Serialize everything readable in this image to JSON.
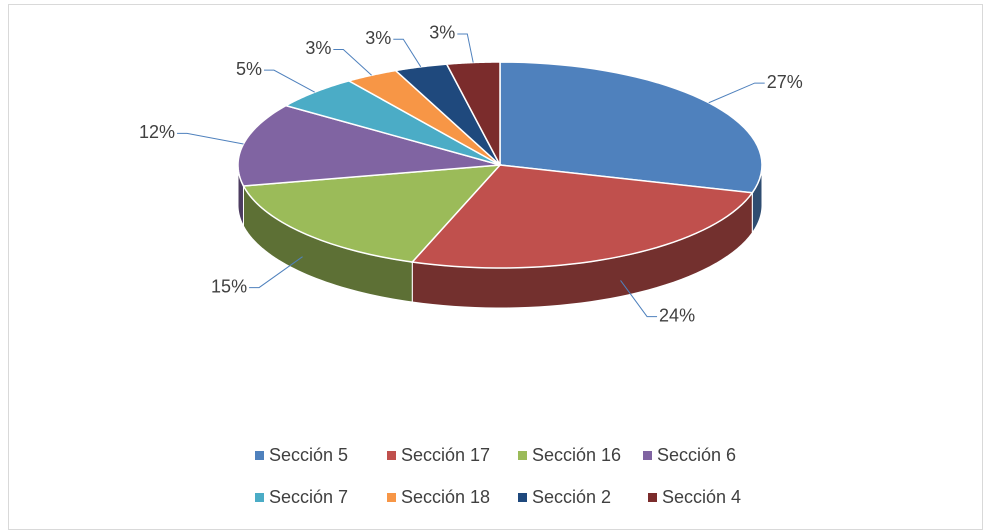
{
  "chart_data": {
    "type": "pie",
    "categories": [
      "Sección 5",
      "Sección 17",
      "Sección 16",
      "Sección 6",
      "Sección 7",
      "Sección 18",
      "Sección 2",
      "Sección 4"
    ],
    "values": [
      27,
      24,
      15,
      12,
      5,
      3,
      3,
      3
    ],
    "value_labels": [
      "27%",
      "24%",
      "15%",
      "12%",
      "5%",
      "3%",
      "3%",
      "3%"
    ],
    "colors": [
      "#4f81bd",
      "#c0504d",
      "#9bbb59",
      "#8064a2",
      "#4bacc6",
      "#f79646",
      "#1f497d",
      "#7b2c2c"
    ],
    "legend": "bottom"
  }
}
